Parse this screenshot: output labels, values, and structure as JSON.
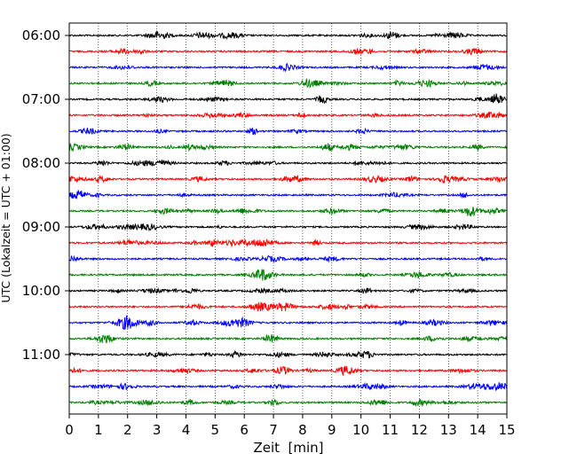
{
  "chart_data": {
    "type": "line",
    "title": "",
    "xlabel": "Zeit  [min]",
    "ylabel": "UTC (Lokalzeit = UTC + 01:00)",
    "xlim": [
      0,
      15
    ],
    "x_ticks": [
      "0",
      "1",
      "2",
      "3",
      "4",
      "5",
      "6",
      "7",
      "8",
      "9",
      "10",
      "11",
      "12",
      "13",
      "14",
      "15"
    ],
    "y_tick_labels": [
      "06:00",
      "07:00",
      "08:00",
      "09:00",
      "10:00",
      "11:00"
    ],
    "grid": "vertical dotted at each minute",
    "trace_interval_min": 15,
    "trace_count": 24,
    "trace_start": "06:00",
    "trace_colors": [
      "#000000",
      "#ff0000",
      "#0000ff",
      "#008000"
    ],
    "trace_color_names": [
      "black",
      "red",
      "blue",
      "green"
    ],
    "series": "continuous seismogram (Helicorder), one 15-min trace per row, colors cycle black/red/blue/green"
  }
}
